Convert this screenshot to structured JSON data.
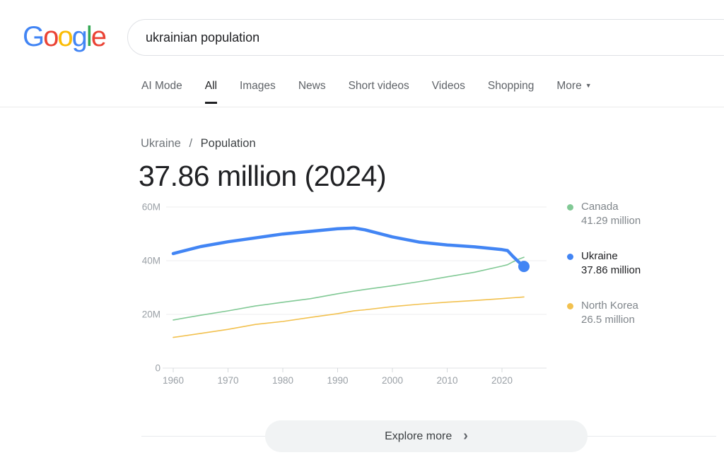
{
  "header": {
    "logo_letters": [
      {
        "ch": "G",
        "color": "#4285F4"
      },
      {
        "ch": "o",
        "color": "#EA4335"
      },
      {
        "ch": "o",
        "color": "#FBBC05"
      },
      {
        "ch": "g",
        "color": "#4285F4"
      },
      {
        "ch": "l",
        "color": "#34A853"
      },
      {
        "ch": "e",
        "color": "#EA4335"
      }
    ],
    "search": {
      "value": "ukrainian population"
    }
  },
  "tabs": {
    "items": [
      {
        "label": "AI Mode",
        "active": false,
        "dropdown": false
      },
      {
        "label": "All",
        "active": true,
        "dropdown": false
      },
      {
        "label": "Images",
        "active": false,
        "dropdown": false
      },
      {
        "label": "News",
        "active": false,
        "dropdown": false
      },
      {
        "label": "Short videos",
        "active": false,
        "dropdown": false
      },
      {
        "label": "Videos",
        "active": false,
        "dropdown": false
      },
      {
        "label": "Shopping",
        "active": false,
        "dropdown": false
      },
      {
        "label": "More",
        "active": false,
        "dropdown": true
      }
    ]
  },
  "breadcrumb": {
    "parent": "Ukraine",
    "separator": "/",
    "current": "Population"
  },
  "answer": {
    "title": "37.86 million (2024)"
  },
  "legend": [
    {
      "name": "Canada",
      "value": "41.29 million",
      "color": "#81c995",
      "active": false
    },
    {
      "name": "Ukraine",
      "value": "37.86 million",
      "color": "#4285f4",
      "active": true
    },
    {
      "name": "North Korea",
      "value": "26.5 million",
      "color": "#f2c14f",
      "active": false
    }
  ],
  "explore": {
    "label": "Explore more"
  },
  "icons": {
    "chevron_right": "›",
    "dropdown_arrow": "▼"
  },
  "colors": {
    "ukraine_blue": "#4285f4",
    "canada_green": "#81c995",
    "north_korea_yellow": "#f2c14f",
    "axis_text": "#9aa0a6",
    "gridline": "#ededef",
    "axis_line": "#e1e3e6"
  },
  "chart_data": {
    "type": "line",
    "title": "Population (millions)",
    "x": [
      1960,
      1965,
      1970,
      1975,
      1980,
      1985,
      1990,
      1993,
      1995,
      2000,
      2005,
      2010,
      2015,
      2020,
      2021,
      2022,
      2023,
      2024
    ],
    "series": [
      {
        "name": "Canada",
        "color": "#81c995",
        "emphasis": false,
        "end_dot": false,
        "values": [
          17.91,
          19.68,
          21.32,
          23.14,
          24.52,
          25.84,
          27.69,
          28.68,
          29.3,
          30.69,
          32.24,
          34.0,
          35.7,
          38.01,
          38.51,
          39.57,
          40.53,
          41.29
        ]
      },
      {
        "name": "North Korea",
        "color": "#f2c14f",
        "emphasis": false,
        "end_dot": false,
        "values": [
          11.42,
          12.93,
          14.41,
          16.27,
          17.37,
          18.88,
          20.29,
          21.35,
          21.72,
          22.93,
          23.81,
          24.55,
          25.18,
          25.87,
          26.03,
          26.18,
          26.34,
          26.5
        ]
      },
      {
        "name": "Ukraine",
        "color": "#4285f4",
        "emphasis": true,
        "end_dot": true,
        "values": [
          42.66,
          45.26,
          47.05,
          48.51,
          49.95,
          50.92,
          51.89,
          52.18,
          51.51,
          48.88,
          46.89,
          45.87,
          45.15,
          44.13,
          43.79,
          41.6,
          39.6,
          37.86
        ]
      }
    ],
    "x_ticks": [
      {
        "label": "1960",
        "value": 1960
      },
      {
        "label": "1970",
        "value": 1970
      },
      {
        "label": "1980",
        "value": 1980
      },
      {
        "label": "1990",
        "value": 1990
      },
      {
        "label": "2000",
        "value": 2000
      },
      {
        "label": "2010",
        "value": 2010
      },
      {
        "label": "2020",
        "value": 2020
      }
    ],
    "y_ticks": [
      {
        "label": "60M",
        "value": 60
      },
      {
        "label": "40M",
        "value": 40
      },
      {
        "label": "20M",
        "value": 20
      },
      {
        "label": "0",
        "value": 0
      }
    ],
    "xlim": [
      1960,
      2028
    ],
    "ylim": [
      0,
      62
    ],
    "grid": true,
    "legend_position": "right"
  }
}
